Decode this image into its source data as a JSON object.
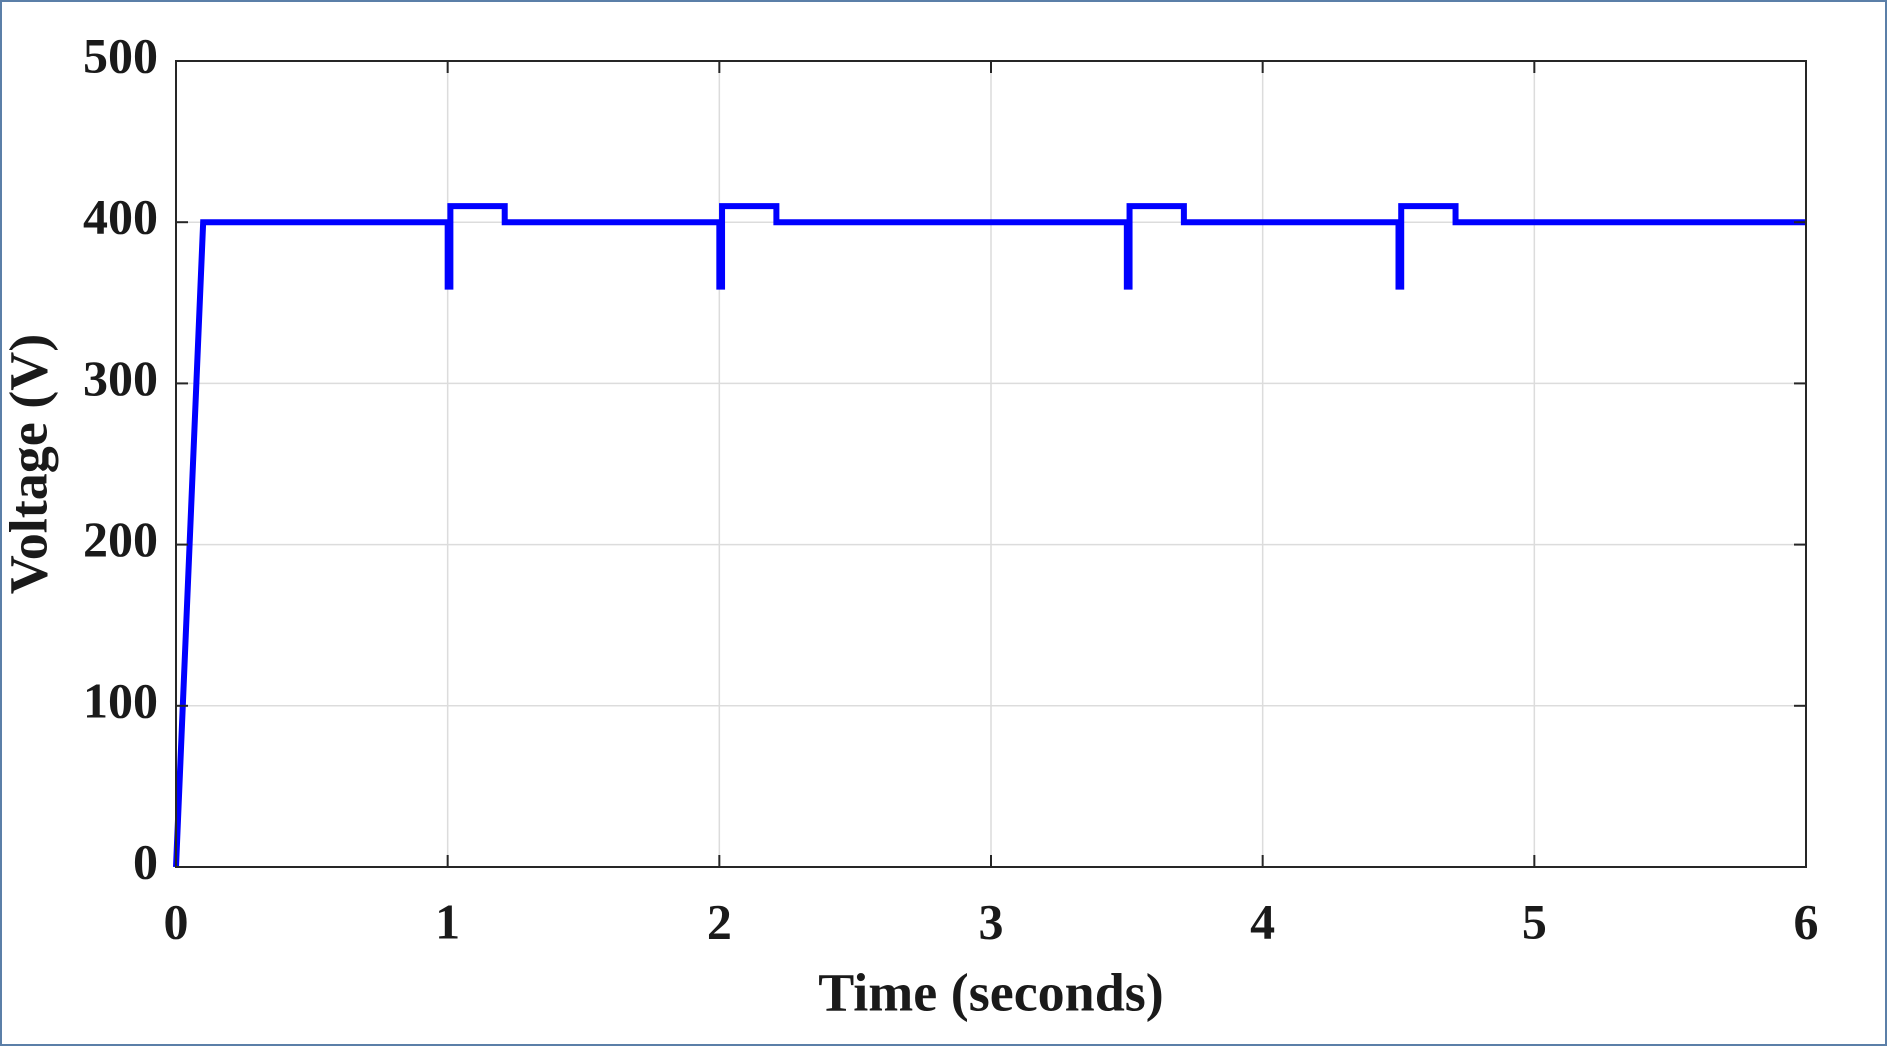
{
  "chart_data": {
    "type": "line",
    "x_label": "Time (seconds)",
    "y_label": "Voltage (V)",
    "x": [
      0,
      0.1,
      1,
      1,
      1.01,
      1.01,
      1.21,
      1.21,
      2,
      2,
      2.01,
      2.01,
      2.21,
      2.21,
      3.5,
      3.5,
      3.51,
      3.51,
      3.71,
      3.71,
      4.5,
      4.5,
      4.51,
      4.51,
      4.71,
      4.71,
      6
    ],
    "series": [
      {
        "color": "#0000ff",
        "values": [
          0,
          400,
          400,
          360,
          360,
          410,
          410,
          400,
          400,
          360,
          360,
          410,
          410,
          400,
          400,
          360,
          360,
          410,
          410,
          400,
          400,
          360,
          360,
          410,
          410,
          400,
          400
        ]
      }
    ],
    "xlim": [
      0,
      6
    ],
    "xticks": [
      0,
      1,
      2,
      3,
      4,
      5,
      6
    ],
    "ylim": [
      0,
      500
    ],
    "yticks": [
      0,
      100,
      200,
      300,
      400,
      500
    ],
    "grid": true
  }
}
